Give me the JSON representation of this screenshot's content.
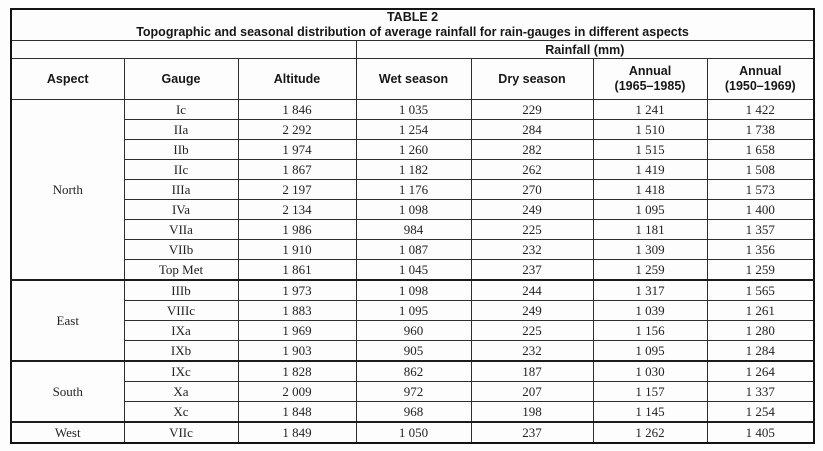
{
  "table": {
    "title_line1": "TABLE 2",
    "title_line2": "Topographic and seasonal distribution of average rainfall for rain-gauges in different aspects",
    "span_header": "Rainfall (mm)",
    "columns": {
      "aspect": "Aspect",
      "gauge": "Gauge",
      "altitude": "Altitude",
      "wet_season": "Wet season",
      "dry_season": "Dry season",
      "annual_a_line1": "Annual",
      "annual_a_line2": "(1965–1985)",
      "annual_b_line1": "Annual",
      "annual_b_line2": "(1950–1969)"
    },
    "groups": [
      {
        "aspect": "North",
        "rows": [
          {
            "gauge": "Ic",
            "altitude": "1 846",
            "wet_season": "1 035",
            "dry_season": "229",
            "annual_1965_1985": "1 241",
            "annual_1950_1969": "1 422"
          },
          {
            "gauge": "IIa",
            "altitude": "2 292",
            "wet_season": "1 254",
            "dry_season": "284",
            "annual_1965_1985": "1 510",
            "annual_1950_1969": "1 738"
          },
          {
            "gauge": "IIb",
            "altitude": "1 974",
            "wet_season": "1 260",
            "dry_season": "282",
            "annual_1965_1985": "1 515",
            "annual_1950_1969": "1 658"
          },
          {
            "gauge": "IIc",
            "altitude": "1 867",
            "wet_season": "1 182",
            "dry_season": "262",
            "annual_1965_1985": "1 419",
            "annual_1950_1969": "1 508"
          },
          {
            "gauge": "IIIa",
            "altitude": "2 197",
            "wet_season": "1 176",
            "dry_season": "270",
            "annual_1965_1985": "1 418",
            "annual_1950_1969": "1 573"
          },
          {
            "gauge": "IVa",
            "altitude": "2 134",
            "wet_season": "1 098",
            "dry_season": "249",
            "annual_1965_1985": "1 095",
            "annual_1950_1969": "1 400"
          },
          {
            "gauge": "VIIa",
            "altitude": "1 986",
            "wet_season": "984",
            "dry_season": "225",
            "annual_1965_1985": "1 181",
            "annual_1950_1969": "1 357"
          },
          {
            "gauge": "VIIb",
            "altitude": "1 910",
            "wet_season": "1 087",
            "dry_season": "232",
            "annual_1965_1985": "1 309",
            "annual_1950_1969": "1 356"
          },
          {
            "gauge": "Top Met",
            "altitude": "1 861",
            "wet_season": "1 045",
            "dry_season": "237",
            "annual_1965_1985": "1 259",
            "annual_1950_1969": "1 259"
          }
        ]
      },
      {
        "aspect": "East",
        "rows": [
          {
            "gauge": "IIIb",
            "altitude": "1 973",
            "wet_season": "1 098",
            "dry_season": "244",
            "annual_1965_1985": "1 317",
            "annual_1950_1969": "1 565"
          },
          {
            "gauge": "VIIIc",
            "altitude": "1 883",
            "wet_season": "1 095",
            "dry_season": "249",
            "annual_1965_1985": "1 039",
            "annual_1950_1969": "1 261"
          },
          {
            "gauge": "IXa",
            "altitude": "1 969",
            "wet_season": "960",
            "dry_season": "225",
            "annual_1965_1985": "1 156",
            "annual_1950_1969": "1 280"
          },
          {
            "gauge": "IXb",
            "altitude": "1 903",
            "wet_season": "905",
            "dry_season": "232",
            "annual_1965_1985": "1 095",
            "annual_1950_1969": "1 284"
          }
        ]
      },
      {
        "aspect": "South",
        "rows": [
          {
            "gauge": "IXc",
            "altitude": "1 828",
            "wet_season": "862",
            "dry_season": "187",
            "annual_1965_1985": "1 030",
            "annual_1950_1969": "1 264"
          },
          {
            "gauge": "Xa",
            "altitude": "2 009",
            "wet_season": "972",
            "dry_season": "207",
            "annual_1965_1985": "1 157",
            "annual_1950_1969": "1 337"
          },
          {
            "gauge": "Xc",
            "altitude": "1 848",
            "wet_season": "968",
            "dry_season": "198",
            "annual_1965_1985": "1 145",
            "annual_1950_1969": "1 254"
          }
        ]
      },
      {
        "aspect": "West",
        "rows": [
          {
            "gauge": "VIIc",
            "altitude": "1 849",
            "wet_season": "1 050",
            "dry_season": "237",
            "annual_1965_1985": "1 262",
            "annual_1950_1969": "1 405"
          }
        ]
      }
    ]
  }
}
